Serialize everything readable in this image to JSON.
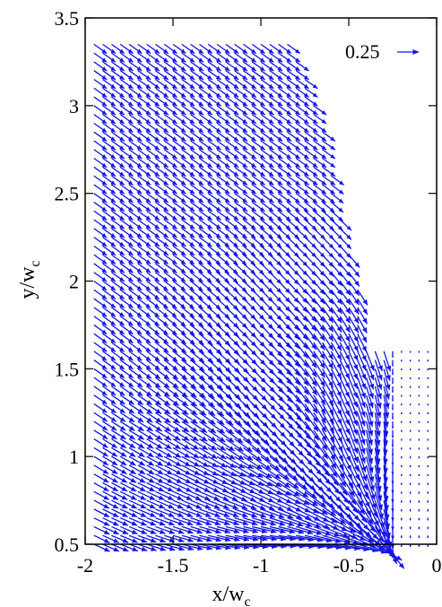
{
  "chart_data": {
    "type": "quiver",
    "title": "",
    "xlabel": {
      "main": "x/w",
      "sub": "c"
    },
    "ylabel": {
      "main": "y/w",
      "sub": "c"
    },
    "xlim": [
      -2,
      0
    ],
    "ylim": [
      0.5,
      3.5
    ],
    "x_ticks": [
      -2,
      -1.5,
      -1,
      -0.5,
      0
    ],
    "x_tick_labels": [
      "-2",
      "-1.5",
      "-1",
      "-0.5",
      "0"
    ],
    "y_ticks": [
      0.5,
      1,
      1.5,
      2,
      2.5,
      3,
      3.5
    ],
    "y_tick_labels": [
      "0.5",
      "1",
      "1.5",
      "2",
      "2.5",
      "3",
      "3.5"
    ],
    "grid": false,
    "reference_vector": {
      "label": "0.25",
      "magnitude": 0.25,
      "position": "top-right"
    },
    "field": {
      "x_min": -1.95,
      "x_step": 0.05,
      "y_min": 0.5,
      "y_step": 0.05,
      "ny": 58,
      "col_y_max": [
        3.35,
        3.35,
        3.35,
        3.35,
        3.35,
        3.35,
        3.35,
        3.35,
        3.35,
        3.35,
        3.35,
        3.35,
        3.35,
        3.35,
        3.35,
        3.35,
        3.35,
        3.35,
        3.35,
        3.35,
        3.35,
        3.35,
        3.35,
        3.25,
        3.15,
        3.0,
        2.85,
        2.6,
        2.35,
        2.15,
        1.95,
        1.6,
        1.6,
        1.6,
        1.6,
        1.6,
        1.6,
        1.6,
        1.6
      ]
    },
    "color": "#1414e6"
  }
}
